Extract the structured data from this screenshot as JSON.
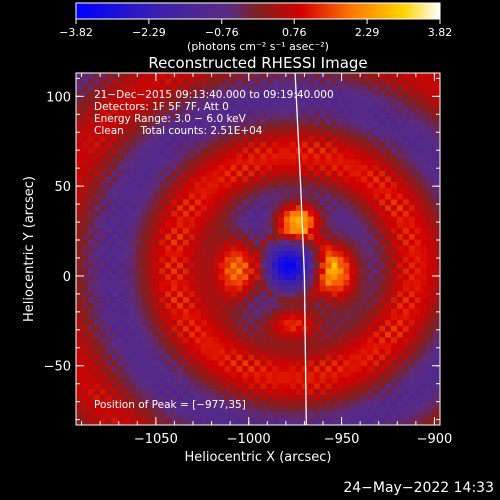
{
  "chart_data": {
    "type": "heatmap",
    "title": "Reconstructed RHESSI Image",
    "xlabel": "Heliocentric X (arcsec)",
    "ylabel": "Heliocentric Y (arcsec)",
    "xlim": [
      -1093,
      -897
    ],
    "ylim": [
      -83,
      113
    ],
    "x_ticks": [
      -1050,
      -1000,
      -950,
      -900
    ],
    "y_ticks": [
      -50,
      0,
      50,
      100
    ],
    "colorbar": {
      "min": -3.82,
      "max": 3.82,
      "ticks": [
        -3.82,
        -2.29,
        -0.76,
        0.76,
        2.29,
        3.82
      ],
      "tick_labels": [
        "−3.82",
        "−2.29",
        "−0.76",
        "0.76",
        "2.29",
        "3.82"
      ],
      "unit_label": "(photons cm⁻² s⁻¹ asec⁻²)",
      "colors": [
        "#0000ff",
        "#3a1fb0",
        "#5a2b80",
        "#802020",
        "#d40000",
        "#ff7a00",
        "#ffd400",
        "#ffffff"
      ]
    },
    "annotations": [
      "21−Dec−2015 09:13:40.000 to 09:19:40.000",
      "Detectors: 1F 5F 7F, Att 0",
      "Energy Range: 3.0 − 6.0 keV",
      "Clean     Total counts: 2.51E+04"
    ],
    "peak_label": "Position of Peak = [−977,35]",
    "peak": [
      -977,
      35
    ],
    "limb_points": [
      [
        -975,
        113
      ],
      [
        -972,
        50
      ],
      [
        -970,
        0
      ],
      [
        -969,
        -83
      ]
    ],
    "sources": [
      {
        "x": -975,
        "y": 33,
        "sx": 9,
        "sy": 7,
        "amp": 3.82
      },
      {
        "x": -1008,
        "y": 5,
        "sx": 9,
        "sy": 14,
        "amp": 3.3
      },
      {
        "x": -953,
        "y": 3,
        "sx": 9,
        "sy": 14,
        "amp": 3.1
      },
      {
        "x": -978,
        "y": -25,
        "sx": 12,
        "sy": 7,
        "amp": 2.6
      },
      {
        "x": -980,
        "y": 7,
        "sx": 10,
        "sy": 9,
        "amp": -3.6
      }
    ]
  },
  "footer": {
    "date_stamp": "24−May−2022 14:33"
  }
}
